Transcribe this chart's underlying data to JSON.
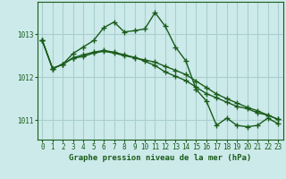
{
  "title": "Graphe pression niveau de la mer (hPa)",
  "bg_color": "#cceaea",
  "grid_color": "#aacece",
  "line_color": "#1a5c1a",
  "xlim": [
    -0.5,
    23.5
  ],
  "ylim": [
    1010.55,
    1013.75
  ],
  "yticks": [
    1011,
    1012,
    1013
  ],
  "xticks": [
    0,
    1,
    2,
    3,
    4,
    5,
    6,
    7,
    8,
    9,
    10,
    11,
    12,
    13,
    14,
    15,
    16,
    17,
    18,
    19,
    20,
    21,
    22,
    23
  ],
  "series1_x": [
    0,
    1,
    2,
    3,
    4,
    5,
    6,
    7,
    8,
    9,
    10,
    11,
    12,
    13,
    14,
    15,
    16,
    17,
    18,
    19,
    20,
    21,
    22,
    23
  ],
  "series1_y": [
    1012.85,
    1012.2,
    1012.3,
    1012.55,
    1012.7,
    1012.85,
    1013.15,
    1013.28,
    1013.05,
    1013.08,
    1013.12,
    1013.5,
    1013.18,
    1012.7,
    1012.38,
    1011.72,
    1011.45,
    1010.88,
    1011.05,
    1010.88,
    1010.85,
    1010.88,
    1011.05,
    1010.92
  ],
  "series2_x": [
    0,
    1,
    2,
    3,
    4,
    5,
    6,
    7,
    8,
    9,
    10,
    11,
    12,
    13,
    14,
    15,
    16,
    17,
    18,
    19,
    20,
    21,
    22,
    23
  ],
  "series2_y": [
    1012.85,
    1012.2,
    1012.3,
    1012.45,
    1012.52,
    1012.58,
    1012.62,
    1012.58,
    1012.52,
    1012.46,
    1012.37,
    1012.27,
    1012.12,
    1012.02,
    1011.92,
    1011.77,
    1011.62,
    1011.52,
    1011.42,
    1011.32,
    1011.27,
    1011.17,
    1011.12,
    1011.02
  ],
  "series3_x": [
    0,
    1,
    2,
    3,
    4,
    5,
    6,
    7,
    8,
    9,
    10,
    11,
    12,
    13,
    14,
    15,
    16,
    17,
    18,
    19,
    20,
    21,
    22,
    23
  ],
  "series3_y": [
    1012.85,
    1012.2,
    1012.3,
    1012.44,
    1012.48,
    1012.56,
    1012.6,
    1012.56,
    1012.5,
    1012.45,
    1012.4,
    1012.35,
    1012.25,
    1012.16,
    1012.06,
    1011.91,
    1011.76,
    1011.61,
    1011.5,
    1011.4,
    1011.3,
    1011.22,
    1011.12,
    1011.02
  ],
  "marker": "+",
  "markersize": 4.0,
  "linewidth": 1.0,
  "title_fontsize": 6.5,
  "tick_fontsize": 5.5
}
